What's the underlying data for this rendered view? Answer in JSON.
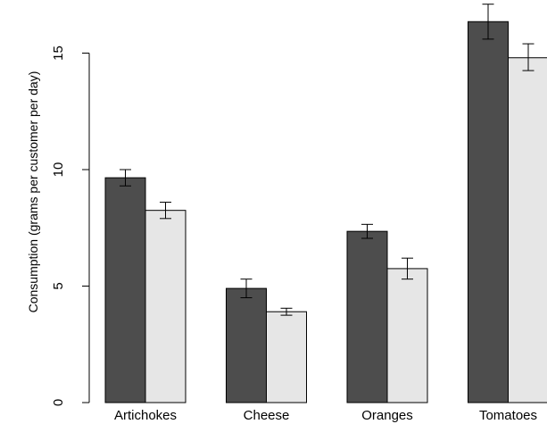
{
  "chart_data": {
    "type": "bar",
    "title": "",
    "xlabel": "",
    "ylabel": "Consumption (grams per customer per day)",
    "ylim": [
      0,
      16.5
    ],
    "yticks": [
      0,
      5,
      10,
      15
    ],
    "grid": false,
    "categories": [
      "Artichokes",
      "Cheese",
      "Oranges",
      "Tomatoes"
    ],
    "series": [
      {
        "color": "#4d4d4d",
        "values": [
          9.65,
          4.9,
          7.35,
          16.35
        ],
        "error_low": [
          9.3,
          4.5,
          7.05,
          15.6
        ],
        "error_high": [
          10.0,
          5.3,
          7.65,
          17.1
        ]
      },
      {
        "color": "#e6e6e6",
        "values": [
          8.25,
          3.9,
          5.75,
          14.8
        ],
        "error_low": [
          7.9,
          3.75,
          5.3,
          14.25
        ],
        "error_high": [
          8.6,
          4.05,
          6.2,
          15.4
        ]
      }
    ]
  }
}
